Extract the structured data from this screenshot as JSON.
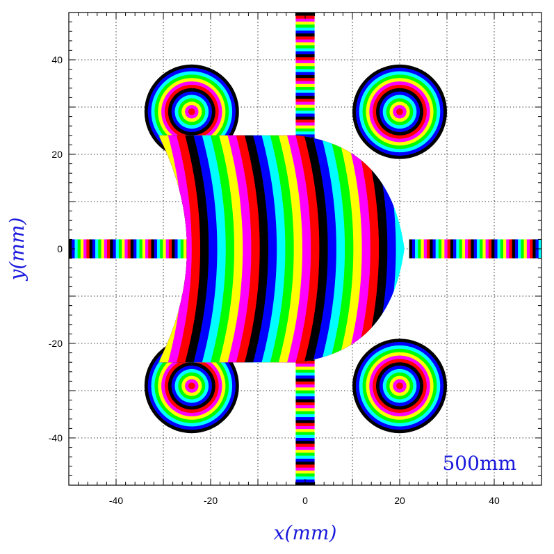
{
  "chart_data": {
    "type": "heatmap",
    "title": "",
    "xlabel": "x(mm)",
    "ylabel": "y(mm)",
    "xlim": [
      -50,
      50
    ],
    "ylim": [
      -50,
      50
    ],
    "x_ticks": [
      -40,
      -20,
      0,
      20,
      40
    ],
    "y_ticks": [
      40,
      20,
      0,
      -20,
      -40
    ],
    "x_tick_labels": [
      "-40",
      "-20",
      "0",
      "20",
      "40"
    ],
    "y_tick_labels": [
      "40",
      "20",
      "0",
      "-20",
      "-40"
    ],
    "grid": true,
    "annotation": "500mm",
    "color_cycle": [
      "#000000",
      "#0000ff",
      "#00ffff",
      "#00ff00",
      "#ffff00",
      "#ff00ff",
      "#ff0000"
    ],
    "regions": [
      {
        "name": "top-left-ring",
        "shape": "circle",
        "center": [
          -24,
          29
        ],
        "radius": 10
      },
      {
        "name": "top-right-ring",
        "shape": "circle",
        "center": [
          20,
          29
        ],
        "radius": 10
      },
      {
        "name": "bottom-left-ring",
        "shape": "circle",
        "center": [
          -24,
          -29
        ],
        "radius": 10
      },
      {
        "name": "bottom-right-ring",
        "shape": "circle",
        "center": [
          20,
          -29
        ],
        "radius": 10
      },
      {
        "name": "central-lens",
        "shape": "crescent",
        "x_range": [
          -31,
          21
        ],
        "y_range": [
          -24,
          24
        ]
      },
      {
        "name": "left-strip",
        "shape": "bar",
        "x_range": [
          -50,
          -22
        ],
        "y_range": [
          -2,
          2
        ]
      },
      {
        "name": "right-strip",
        "shape": "bar",
        "x_range": [
          22,
          50
        ],
        "y_range": [
          -2,
          2
        ]
      },
      {
        "name": "top-strip",
        "shape": "bar",
        "x_range": [
          -2,
          2
        ],
        "y_range": [
          23,
          50
        ]
      },
      {
        "name": "bottom-strip",
        "shape": "bar",
        "x_range": [
          -2,
          2
        ],
        "y_range": [
          -50,
          -23
        ]
      }
    ]
  }
}
